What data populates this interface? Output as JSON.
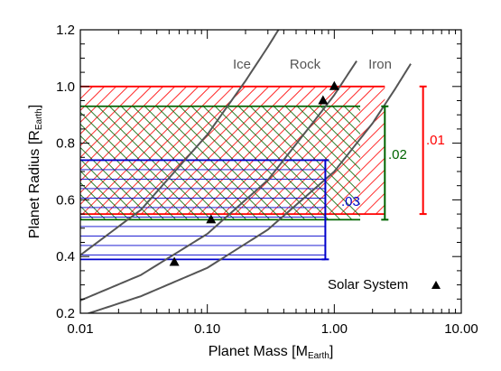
{
  "chart_data": {
    "type": "line",
    "xlabel": "Planet Mass [M",
    "xlabel_sub": "Earth",
    "xlabel_end": "]",
    "ylabel": "Planet Radius [R",
    "ylabel_sub": "Earth",
    "ylabel_end": "]",
    "xscale": "log",
    "xlim": [
      0.01,
      10
    ],
    "ylim": [
      0.2,
      1.2
    ],
    "x_tick_values": [
      0.01,
      0.1,
      1,
      10
    ],
    "x_tick_labels": [
      "0.01",
      "0.10",
      "1.00",
      "10.00"
    ],
    "y_tick_values": [
      0.2,
      0.4,
      0.6,
      0.8,
      1.0,
      1.2
    ],
    "y_tick_labels": [
      "0.2",
      "0.4",
      "0.6",
      "0.8",
      "1.0",
      "1.2"
    ],
    "curves": [
      {
        "name": "Ice",
        "color": "#555555",
        "x": [
          0.01,
          0.03,
          0.1,
          0.2,
          0.3,
          0.5
        ],
        "y": [
          0.405,
          0.565,
          0.83,
          1.02,
          1.14,
          1.3
        ]
      },
      {
        "name": "Rock",
        "color": "#555555",
        "x": [
          0.01,
          0.03,
          0.1,
          0.3,
          0.7,
          1.0,
          1.5
        ],
        "y": [
          0.245,
          0.335,
          0.48,
          0.67,
          0.88,
          0.97,
          1.09
        ]
      },
      {
        "name": "Iron",
        "color": "#555555",
        "x": [
          0.01,
          0.03,
          0.1,
          0.3,
          1.0,
          2.0,
          3.0,
          4.0
        ],
        "y": [
          0.19,
          0.26,
          0.36,
          0.495,
          0.7,
          0.87,
          0.99,
          1.08
        ]
      }
    ],
    "hatched_bands": [
      {
        "color": "#ff0000",
        "ymin": 0.55,
        "ymax": 1.0,
        "xmin": 0.01,
        "xmax": 2.5,
        "pattern": "diagonal"
      },
      {
        "color": "#006400",
        "ymin": 0.53,
        "ymax": 0.93,
        "xmin": 0.01,
        "xmax": 1.6,
        "pattern": "antidiagonal"
      },
      {
        "color": "#0000cc",
        "ymin": 0.39,
        "ymax": 0.74,
        "xmin": 0.01,
        "xmax": 0.85,
        "pattern": "horizontal"
      }
    ],
    "error_bars": [
      {
        "label": ".01",
        "color": "#ff0000",
        "x": 5.0,
        "ymin": 0.55,
        "ymax": 1.0
      },
      {
        "label": ".02",
        "color": "#006400",
        "x": 2.5,
        "ymin": 0.53,
        "ymax": 0.93
      },
      {
        "label": ".03",
        "color": "#0000cc",
        "x": 0.85,
        "ymin": 0.39,
        "ymax": 0.74
      }
    ],
    "points": {
      "name": "Solar System",
      "marker": "triangle",
      "color": "#000000",
      "x": [
        0.055,
        0.107,
        0.815,
        1.0
      ],
      "y": [
        0.38,
        0.53,
        0.95,
        1.0
      ]
    },
    "grid": false,
    "legend_position": "bottom-right"
  }
}
